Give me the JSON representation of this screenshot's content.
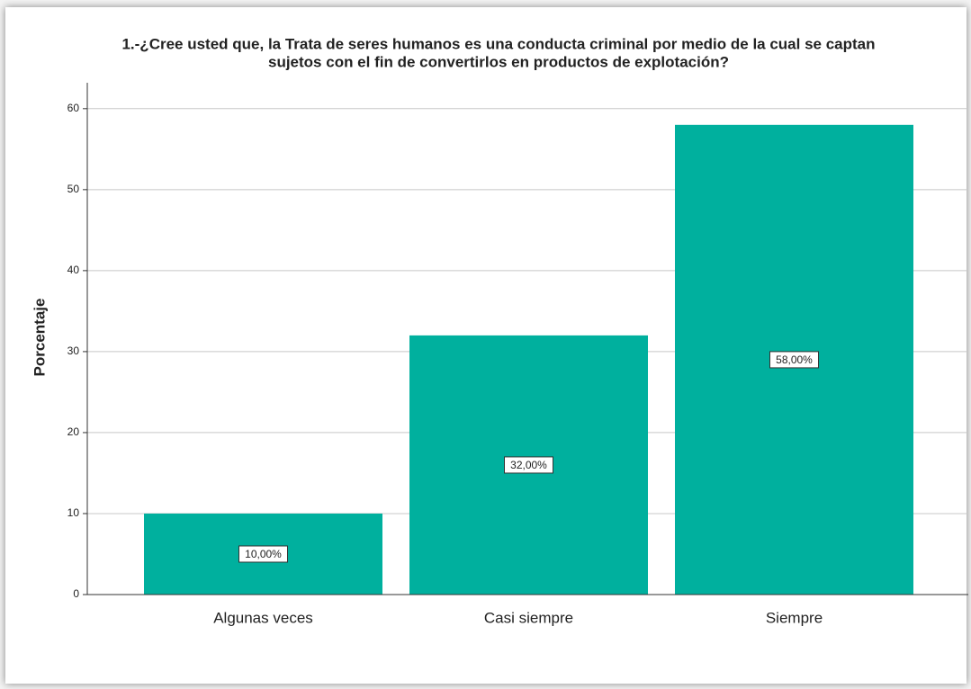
{
  "chart_data": {
    "type": "bar",
    "title": [
      "1.-¿Cree usted que, la Trata de seres humanos es una conducta criminal por medio de la cual se captan",
      "sujetos con el fin de convertirlos en productos de explotación?"
    ],
    "y_label": "Porcentaje",
    "categories": [
      "Algunas veces",
      "Casi siempre",
      "Siempre"
    ],
    "values": [
      10,
      32,
      58
    ],
    "value_labels": [
      "10,00%",
      "32,00%",
      "58,00%"
    ],
    "color": "#00b09e",
    "ylim": [
      0,
      63.2
    ],
    "yticks": [
      0,
      10,
      20,
      30,
      40,
      50,
      60
    ],
    "grid": true
  }
}
